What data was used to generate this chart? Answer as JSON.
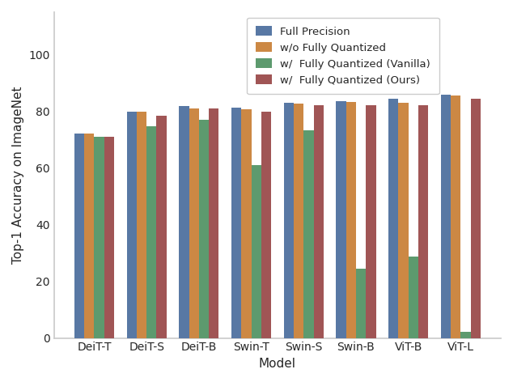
{
  "models": [
    "DeiT-T",
    "DeiT-S",
    "DeiT-B",
    "Swin-T",
    "Swin-S",
    "Swin-B",
    "ViT-B",
    "ViT-L"
  ],
  "series": {
    "Full Precision": [
      72.2,
      79.8,
      81.8,
      81.3,
      83.0,
      83.5,
      84.5,
      85.8
    ],
    "w/o Fully Quantized": [
      72.2,
      79.8,
      81.0,
      80.6,
      82.8,
      83.2,
      83.1,
      85.6
    ],
    "w/  Fully Quantized (Vanilla)": [
      71.0,
      74.8,
      77.0,
      61.0,
      73.3,
      24.5,
      28.8,
      2.3
    ],
    "w/  Fully Quantized (Ours)": [
      71.0,
      78.5,
      81.0,
      80.0,
      82.2,
      82.2,
      82.1,
      84.5
    ]
  },
  "colors": {
    "Full Precision": "#5878a4",
    "w/o Fully Quantized": "#cc8844",
    "w/  Fully Quantized (Vanilla)": "#5d9a6e",
    "w/  Fully Quantized (Ours)": "#a05555"
  },
  "ylabel": "Top-1 Accuracy on ImageNet",
  "xlabel": "Model",
  "ylim": [
    0,
    115
  ],
  "yticks": [
    0,
    20,
    40,
    60,
    80,
    100
  ],
  "legend_loc": "upper right",
  "bar_width": 0.19,
  "figsize": [
    6.34,
    4.72
  ],
  "dpi": 100,
  "background_color": "#ffffff",
  "grid_color": "#ffffff",
  "spine_color": "#cccccc"
}
